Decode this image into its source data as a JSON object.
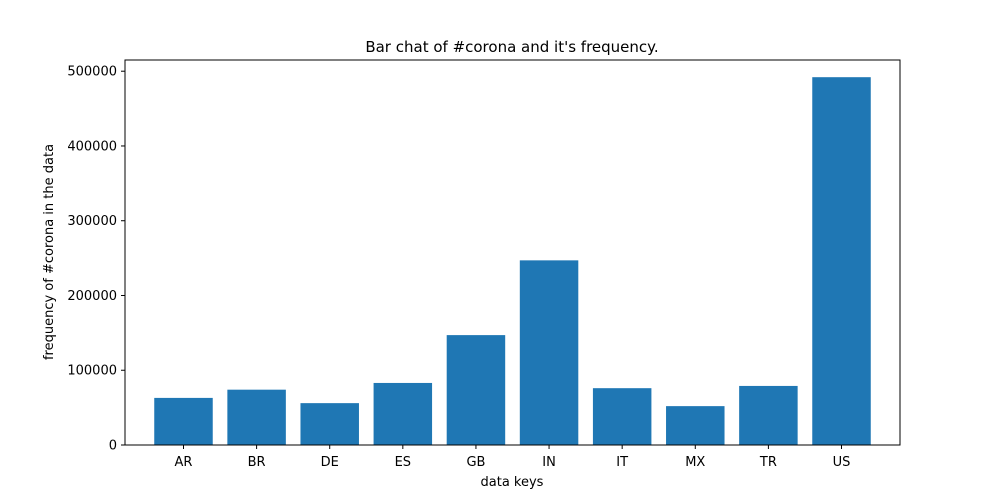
{
  "chart_data": {
    "type": "bar",
    "title": "Bar chat of #corona and it's frequency.",
    "xlabel": "data keys",
    "ylabel": "frequency of #corona in the data",
    "categories": [
      "AR",
      "BR",
      "DE",
      "ES",
      "GB",
      "IN",
      "IT",
      "MX",
      "TR",
      "US"
    ],
    "values": [
      63000,
      74000,
      56000,
      83000,
      147000,
      247000,
      76000,
      52000,
      79000,
      492000
    ],
    "ylim": [
      0,
      515000
    ],
    "yticks": [
      0,
      100000,
      200000,
      300000,
      400000,
      500000
    ],
    "ytick_labels": [
      "0",
      "100000",
      "200000",
      "300000",
      "400000",
      "500000"
    ],
    "bar_color": "#1f77b4",
    "grid": false,
    "legend": false
  }
}
